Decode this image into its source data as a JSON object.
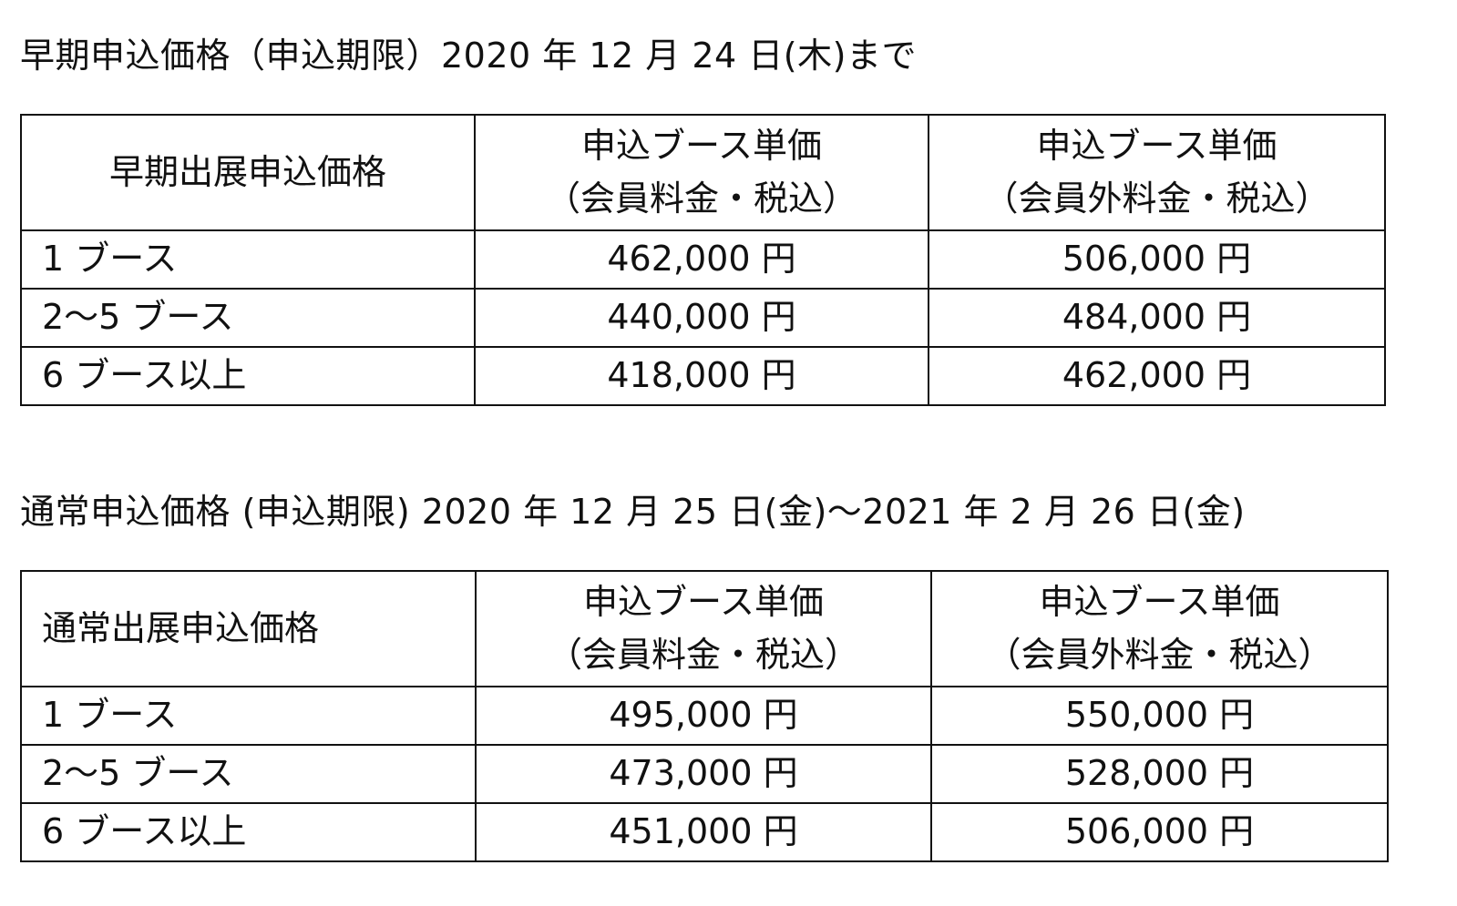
{
  "early": {
    "heading": "早期申込価格（申込期限）2020 年 12 月 24 日(木)まで",
    "header": {
      "label": "早期出展申込価格",
      "member": {
        "line1": "申込ブース単価",
        "line2": "（会員料金・税込）"
      },
      "nonmember": {
        "line1": "申込ブース単価",
        "line2": "（会員外料金・税込）"
      }
    },
    "rows": [
      {
        "label": "1 ブース",
        "member": "462,000 円",
        "nonmember": "506,000 円"
      },
      {
        "label": "2～5 ブース",
        "member": "440,000 円",
        "nonmember": "484,000 円"
      },
      {
        "label": "6 ブース以上",
        "member": "418,000 円",
        "nonmember": "462,000 円"
      }
    ]
  },
  "regular": {
    "heading": "通常申込価格 (申込期限) 2020 年 12 月 25 日(金)～2021 年 2 月 26 日(金)",
    "header": {
      "label": "通常出展申込価格",
      "member": {
        "line1": "申込ブース単価",
        "line2": "（会員料金・税込）"
      },
      "nonmember": {
        "line1": "申込ブース単価",
        "line2": "（会員外料金・税込）"
      }
    },
    "rows": [
      {
        "label": "1 ブース",
        "member": "495,000 円",
        "nonmember": "550,000 円"
      },
      {
        "label": "2～5 ブース",
        "member": "473,000 円",
        "nonmember": "528,000 円"
      },
      {
        "label": "6 ブース以上",
        "member": "451,000 円",
        "nonmember": "506,000 円"
      }
    ]
  }
}
